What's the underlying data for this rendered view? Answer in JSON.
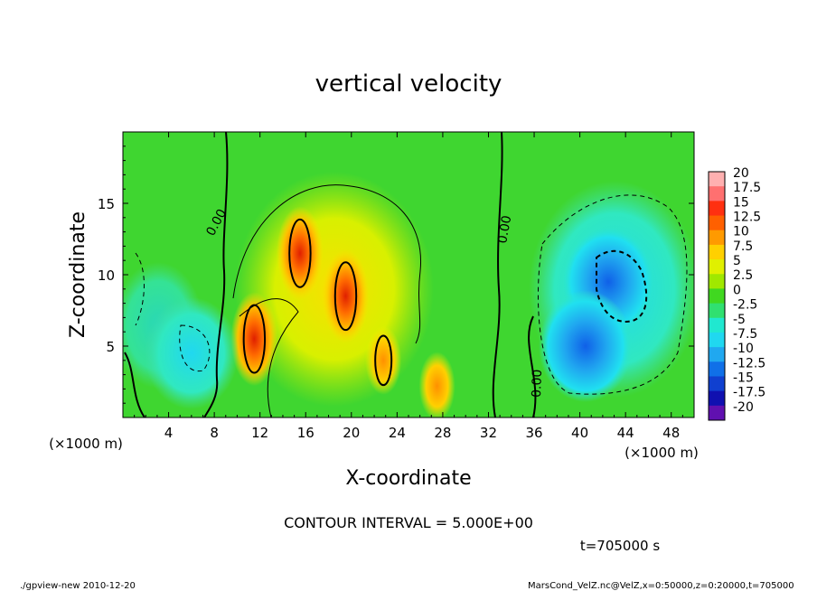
{
  "chart_data": {
    "type": "heatmap",
    "title": "vertical velocity",
    "xlabel": "X-coordinate",
    "ylabel": "Z-coordinate",
    "x_unit_label_left": "(×1000 m)",
    "x_unit_label_right": "(×1000 m)",
    "xlim": [
      0,
      50
    ],
    "ylim": [
      0,
      20
    ],
    "x_ticks": [
      4,
      8,
      12,
      16,
      20,
      24,
      28,
      32,
      36,
      40,
      44,
      48
    ],
    "x_tick_labels": [
      "4",
      "8",
      "12",
      "16",
      "20",
      "24",
      "28",
      "32",
      "36",
      "40",
      "44",
      "48"
    ],
    "y_ticks": [
      5,
      10,
      15
    ],
    "y_tick_labels": [
      "5",
      "10",
      "15"
    ],
    "colorbar": {
      "levels": [
        "20",
        "17.5",
        "15",
        "12.5",
        "10",
        "7.5",
        "5",
        "2.5",
        "0",
        "-2.5",
        "-5",
        "-7.5",
        "-10",
        "-12.5",
        "-15",
        "-17.5",
        "-20"
      ],
      "colors": [
        "#ffb0b0",
        "#ff7070",
        "#ff3010",
        "#ff6000",
        "#ff9a00",
        "#ffd000",
        "#e0f000",
        "#a0e800",
        "#40d820",
        "#30e070",
        "#20e8d0",
        "#20d8f0",
        "#20a8f0",
        "#1070e8",
        "#1040d0",
        "#1010b0",
        "#6010b0"
      ]
    },
    "contour_labels": [
      "0.00",
      "0.00",
      "0.00"
    ],
    "contour_interval_text": "CONTOUR INTERVAL = 5.000E+00",
    "time_text": "t=705000 s",
    "features": [
      {
        "x": 11.5,
        "z": 5.5,
        "w": 14
      },
      {
        "x": 15.5,
        "z": 11.5,
        "w": 12
      },
      {
        "x": 19.5,
        "z": 8.5,
        "w": 14
      },
      {
        "x": 22.8,
        "z": 4.0,
        "w": 10
      },
      {
        "x": 27.5,
        "z": 2.2,
        "w": 5
      },
      {
        "x": 42.5,
        "z": 9.5,
        "w": -10
      },
      {
        "x": 40.5,
        "z": 5.0,
        "w": -9
      },
      {
        "x": 6.0,
        "z": 4.5,
        "w": -6
      }
    ]
  },
  "footer": {
    "left": "./gpview-new   2010-12-20",
    "right": "MarsCond_VelZ.nc@VelZ,x=0:50000,z=0:20000,t=705000"
  }
}
